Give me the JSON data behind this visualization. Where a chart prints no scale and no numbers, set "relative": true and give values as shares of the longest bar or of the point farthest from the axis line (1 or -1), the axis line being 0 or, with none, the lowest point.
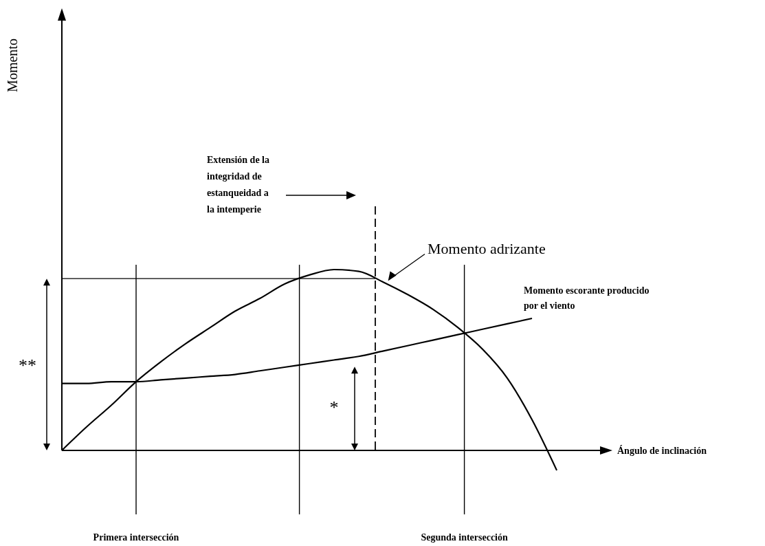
{
  "chart_data": {
    "type": "line",
    "relative": true,
    "xlabel": "Ángulo de inclinación",
    "categories": [
      null,
      null,
      null,
      null,
      null,
      null,
      null,
      null,
      null,
      null,
      null,
      null,
      null,
      null,
      null,
      null,
      null,
      null,
      null,
      null,
      null
    ],
    "series": [
      {
        "name": "Momento adrizante",
        "color": "#000000",
        "values": [
          0,
          0.13,
          0.25,
          0.38,
          0.49,
          0.59,
          0.68,
          0.77,
          0.84,
          0.92,
          0.97,
          1.0,
          0.99,
          0.93,
          0.86,
          0.78,
          0.68,
          0.56,
          0.4,
          0.17,
          -0.11
        ]
      },
      {
        "name": "Momento escorante producido por el viento",
        "color": "#000000",
        "values": [
          0.37,
          0.37,
          0.38,
          0.38,
          0.39,
          0.4,
          0.41,
          0.42,
          0.44,
          0.46,
          0.48,
          0.5,
          0.52,
          0.55,
          0.58,
          0.61,
          0.64,
          0.67,
          0.7,
          0.73,
          null
        ]
      }
    ],
    "ref_lines": [
      {
        "axis": "y",
        "value": 0.95,
        "label": null
      }
    ],
    "annotations": [
      "**",
      "*",
      "Primera intersección",
      "Segunda intersección",
      "Extensión de la integridad de estanqueidad a la intemperie",
      "Momento"
    ]
  }
}
